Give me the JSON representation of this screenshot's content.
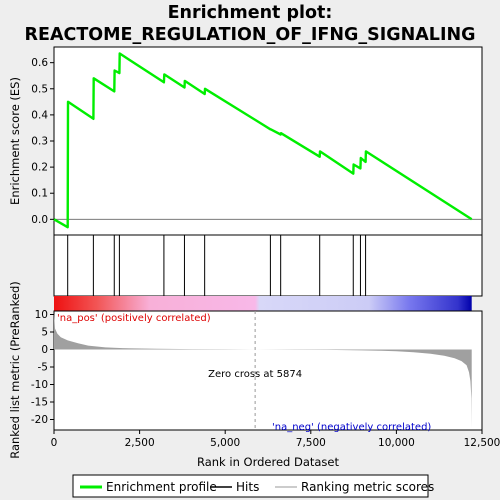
{
  "chart_data": {
    "type": "line",
    "title_line1": "Enrichment plot:",
    "title_line2": "REACTOME_REGULATION_OF_IFNG_SIGNALING",
    "es_ylabel": "Enrichment score (ES)",
    "metric_ylabel": "Ranked list metric (PreRanked)",
    "xlabel": "Rank in Ordered Dataset",
    "xlim": [
      0,
      12500
    ],
    "x_ticks": [
      0,
      2500,
      5000,
      7500,
      10000,
      12500
    ],
    "x_tick_labels": [
      "0",
      "2,500",
      "5,000",
      "7,500",
      "10,000",
      "12,500"
    ],
    "es_ylim": [
      -0.06,
      0.66
    ],
    "es_ticks": [
      0.0,
      0.1,
      0.2,
      0.3,
      0.4,
      0.5,
      0.6
    ],
    "es_tick_labels": [
      "0.0",
      "0.1",
      "0.2",
      "0.3",
      "0.4",
      "0.5",
      "0.6"
    ],
    "metric_ylim": [
      -23,
      11
    ],
    "metric_ticks": [
      10,
      5,
      0,
      -5,
      -10,
      -15,
      -20
    ],
    "metric_tick_labels": [
      "10",
      "5",
      "0",
      "-5",
      "-10",
      "-15",
      "-20"
    ],
    "series": [
      {
        "name": "Enrichment profile",
        "color": "#00ee00",
        "x": [
          0,
          400,
          410,
          1150,
          1160,
          1760,
          1770,
          1910,
          1920,
          3210,
          3220,
          3810,
          3820,
          4400,
          4410,
          6320,
          6330,
          6620,
          6630,
          7760,
          7770,
          8740,
          8750,
          8950,
          8960,
          9100,
          9110,
          12200
        ],
        "y": [
          0.0,
          -0.03,
          0.45,
          0.385,
          0.54,
          0.49,
          0.57,
          0.56,
          0.635,
          0.525,
          0.555,
          0.505,
          0.53,
          0.48,
          0.5,
          0.345,
          0.345,
          0.325,
          0.33,
          0.24,
          0.26,
          0.175,
          0.21,
          0.195,
          0.235,
          0.22,
          0.26,
          0.0
        ]
      }
    ],
    "hits": [
      400,
      1150,
      1760,
      1910,
      3210,
      3810,
      4400,
      6320,
      6620,
      7760,
      8740,
      8950,
      9100
    ],
    "metric_profile": {
      "x": [
        0,
        30,
        100,
        200,
        400,
        700,
        1000,
        1500,
        2000,
        3000,
        4000,
        5000,
        5874,
        7000,
        8000,
        9000,
        9500,
        10000,
        10500,
        11000,
        11400,
        11700,
        11900,
        12050,
        12120,
        12160,
        12190,
        12200
      ],
      "y": [
        10.5,
        6.0,
        4.5,
        3.5,
        2.6,
        1.8,
        1.1,
        0.6,
        0.4,
        0.2,
        0.1,
        0.05,
        0.0,
        -0.05,
        -0.12,
        -0.25,
        -0.35,
        -0.5,
        -0.8,
        -1.2,
        -1.8,
        -2.5,
        -3.3,
        -4.5,
        -6.5,
        -9.0,
        -14.0,
        -22.5
      ]
    },
    "zero_cross_label": "Zero cross at 5874",
    "zero_cross": 5874,
    "pos_label": "'na_pos' (positively correlated)",
    "neg_label": "'na_neg' (negatively correlated)",
    "legend_placement": "bottom",
    "legend": [
      {
        "name": "Enrichment profile",
        "color": "#00ee00"
      },
      {
        "name": "Hits",
        "color": "#000000"
      },
      {
        "name": "Ranking metric scores",
        "color": "#bbbbbb"
      }
    ],
    "colors": {
      "pos_text": "#dd0000",
      "neg_text": "#0000cc",
      "metric_fill": "#a0a0a0"
    },
    "colorbar_stops": [
      {
        "x": 0,
        "color": "#ee1111"
      },
      {
        "x": 1250,
        "color": "#f25555"
      },
      {
        "x": 2800,
        "color": "#f8b0d8"
      },
      {
        "x": 5874,
        "color": "#f8b8e8"
      },
      {
        "x": 6000,
        "color": "#d8d8f8"
      },
      {
        "x": 9200,
        "color": "#ccccf6"
      },
      {
        "x": 10400,
        "color": "#7777ee"
      },
      {
        "x": 11800,
        "color": "#3333cc"
      },
      {
        "x": 12200,
        "color": "#0000aa"
      }
    ]
  }
}
